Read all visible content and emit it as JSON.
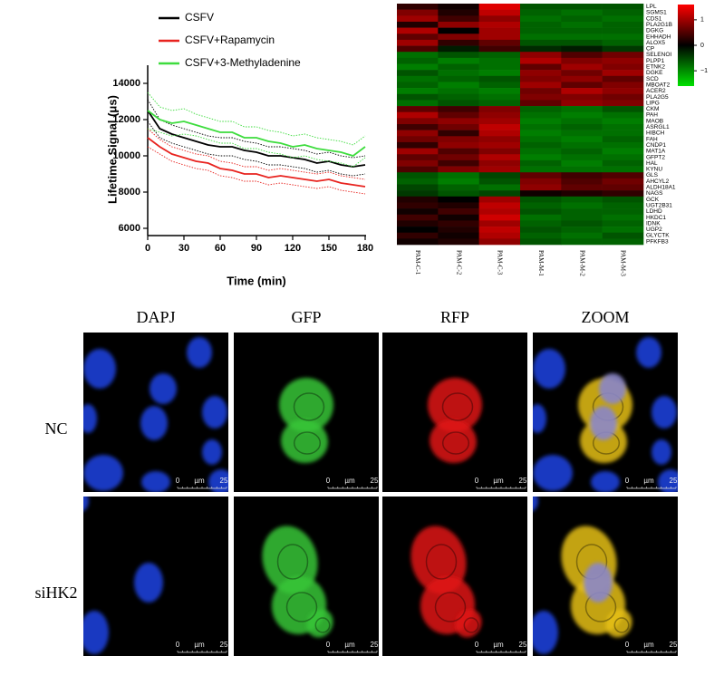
{
  "chart_data": [
    {
      "type": "line",
      "x_label": "Time (min)",
      "y_label": "Lifetime Signal (μs)",
      "x": [
        0,
        10,
        20,
        30,
        40,
        50,
        60,
        70,
        80,
        90,
        100,
        110,
        120,
        130,
        140,
        150,
        160,
        170,
        180
      ],
      "series": [
        {
          "name": "CSFV",
          "color": "#000000",
          "values": [
            12500,
            11500,
            11200,
            11000,
            10800,
            10600,
            10500,
            10500,
            10300,
            10200,
            10000,
            10000,
            9900,
            9800,
            9600,
            9700,
            9500,
            9400,
            9500
          ],
          "error": [
            600,
            500,
            500,
            500,
            500,
            500,
            500,
            500,
            500,
            500,
            500,
            500,
            500,
            500,
            500,
            500,
            500,
            500,
            500
          ]
        },
        {
          "name": "CSFV+Rapamycin",
          "color": "#e8231f",
          "values": [
            11000,
            10500,
            10100,
            9900,
            9700,
            9600,
            9300,
            9200,
            9000,
            9000,
            8800,
            8900,
            8800,
            8700,
            8600,
            8700,
            8500,
            8400,
            8300
          ],
          "error": [
            500,
            400,
            400,
            400,
            400,
            400,
            400,
            400,
            400,
            400,
            400,
            400,
            400,
            400,
            400,
            400,
            400,
            400,
            400
          ]
        },
        {
          "name": "CSFV+3-Methyladenine",
          "color": "#3ddc3d",
          "values": [
            12500,
            12000,
            11800,
            11900,
            11700,
            11500,
            11300,
            11300,
            11000,
            11000,
            10800,
            10700,
            10500,
            10600,
            10400,
            10300,
            10200,
            10000,
            10500
          ],
          "error": [
            1000,
            700,
            700,
            700,
            600,
            600,
            600,
            600,
            600,
            600,
            600,
            600,
            600,
            600,
            600,
            600,
            600,
            600,
            600
          ]
        }
      ],
      "xlim": [
        0,
        180
      ],
      "xticks": [
        0,
        30,
        60,
        90,
        120,
        150,
        180
      ],
      "ylim": [
        5600,
        15000
      ],
      "yticks": [
        6000,
        8000,
        10000,
        12000,
        14000
      ]
    },
    {
      "type": "heatmap",
      "x": [
        "PAM-C-1",
        "PAM-C-2",
        "PAM-C-3",
        "PAM-M-1",
        "PAM-M-2",
        "PAM-M-3"
      ],
      "y": [
        "LPL",
        "SGMS1",
        "CDS1",
        "PLA2G1B",
        "DGKG",
        "EHHADH",
        "ALOX5",
        "CP",
        "SELENOI",
        "PLPP1",
        "ETNK2",
        "DGKE",
        "SCD",
        "MBOAT2",
        "ACER2",
        "PLA2G5",
        "LIPG",
        "CKM",
        "PAH",
        "MAOB",
        "ASRGL1",
        "HIBCH",
        "FAH",
        "CNDP1",
        "MAT1A",
        "GFPT2",
        "HAL",
        "KYNU",
        "GLS",
        "AHCYL2",
        "ALDH18A1",
        "NAGS",
        "GCK",
        "UGT2B31",
        "LDHD",
        "HKDC1",
        "IDNK",
        "UGP2",
        "GLYCTK",
        "PFKFB3"
      ],
      "z": [
        [
          0.3,
          0.1,
          1.4,
          -0.6,
          -0.6,
          -0.6
        ],
        [
          0.8,
          0.2,
          1.2,
          -0.7,
          -0.8,
          -0.7
        ],
        [
          1.0,
          0.4,
          0.9,
          -0.8,
          -0.7,
          -0.8
        ],
        [
          0.2,
          0.9,
          1.1,
          -0.7,
          -0.8,
          -0.7
        ],
        [
          1.1,
          0.0,
          1.0,
          -0.7,
          -0.7,
          -0.7
        ],
        [
          0.6,
          0.8,
          1.0,
          -0.8,
          -0.8,
          -0.8
        ],
        [
          1.0,
          0.3,
          0.6,
          -0.6,
          -0.6,
          -0.7
        ],
        [
          0.5,
          -0.2,
          0.4,
          -0.3,
          -0.2,
          -0.4
        ],
        [
          -0.8,
          -0.6,
          -0.7,
          0.9,
          0.5,
          0.7
        ],
        [
          -0.7,
          -0.9,
          -0.8,
          1.1,
          0.8,
          0.9
        ],
        [
          -0.9,
          -0.7,
          -0.8,
          0.6,
          1.0,
          0.8
        ],
        [
          -0.6,
          -0.8,
          -0.9,
          0.9,
          0.7,
          1.0
        ],
        [
          -0.8,
          -0.7,
          -0.6,
          0.8,
          0.9,
          0.6
        ],
        [
          -0.7,
          -0.9,
          -0.7,
          1.0,
          0.6,
          0.8
        ],
        [
          -0.9,
          -0.8,
          -0.9,
          0.7,
          1.1,
          0.9
        ],
        [
          -0.6,
          -0.7,
          -0.8,
          0.8,
          0.8,
          0.7
        ],
        [
          -0.8,
          -0.6,
          -0.7,
          0.6,
          0.9,
          0.8
        ],
        [
          0.6,
          0.4,
          0.8,
          -0.7,
          -0.8,
          -0.6
        ],
        [
          1.1,
          0.6,
          0.9,
          -0.8,
          -0.9,
          -0.8
        ],
        [
          0.8,
          0.9,
          1.0,
          -0.9,
          -0.8,
          -0.9
        ],
        [
          0.4,
          0.7,
          1.2,
          -0.8,
          -0.7,
          -0.8
        ],
        [
          0.9,
          0.3,
          1.1,
          -0.9,
          -0.8,
          -0.8
        ],
        [
          0.7,
          0.8,
          0.9,
          -0.8,
          -0.9,
          -0.7
        ],
        [
          0.3,
          0.9,
          1.0,
          -0.7,
          -0.8,
          -0.8
        ],
        [
          1.0,
          0.5,
          0.8,
          -0.8,
          -0.7,
          -0.9
        ],
        [
          0.6,
          0.7,
          1.1,
          -0.9,
          -0.8,
          -0.8
        ],
        [
          0.8,
          0.4,
          0.9,
          -0.7,
          -0.9,
          -0.7
        ],
        [
          0.5,
          0.8,
          1.0,
          -0.8,
          -0.8,
          -0.8
        ],
        [
          -0.6,
          -0.8,
          -0.5,
          0.6,
          0.4,
          0.5
        ],
        [
          -0.7,
          -0.9,
          -0.6,
          0.8,
          0.5,
          0.7
        ],
        [
          -0.5,
          -0.7,
          -0.8,
          0.9,
          0.6,
          0.6
        ],
        [
          -0.4,
          -0.6,
          -0.5,
          0.1,
          0.2,
          0.3
        ],
        [
          0.2,
          0.0,
          1.0,
          -0.6,
          -0.7,
          -0.6
        ],
        [
          0.3,
          0.2,
          1.2,
          -0.7,
          -0.8,
          -0.7
        ],
        [
          0.1,
          0.4,
          1.1,
          -0.6,
          -0.7,
          -0.7
        ],
        [
          0.4,
          0.1,
          1.3,
          -0.8,
          -0.7,
          -0.8
        ],
        [
          0.2,
          0.3,
          1.0,
          -0.7,
          -0.6,
          -0.7
        ],
        [
          0.0,
          0.2,
          1.2,
          -0.6,
          -0.7,
          -0.8
        ],
        [
          0.3,
          0.1,
          1.1,
          -0.7,
          -0.8,
          -0.6
        ],
        [
          0.1,
          0.2,
          0.9,
          -0.6,
          -0.7,
          -0.7
        ]
      ],
      "colors": [
        "#00e000",
        "#000000",
        "#ff0000"
      ],
      "zlim": [
        -1.6,
        1.6
      ],
      "zticks": [
        1,
        0,
        {
          "value": -1,
          "label": "−1"
        }
      ]
    }
  ],
  "image_grid": {
    "columns": [
      "DAPJ",
      "GFP",
      "RFP",
      "ZOOM"
    ],
    "rows": [
      "NC",
      "siHK2"
    ],
    "scale_bar": {
      "start": "0",
      "unit": "µm",
      "end": "25"
    }
  }
}
